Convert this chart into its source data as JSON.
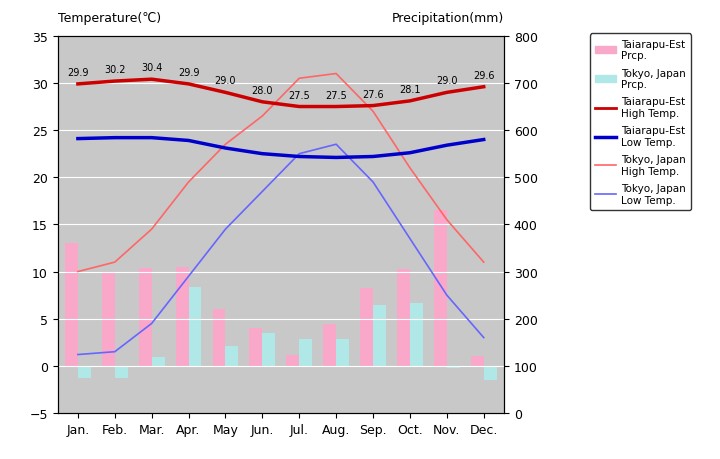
{
  "months": [
    "Jan.",
    "Feb.",
    "Mar.",
    "Apr.",
    "May",
    "Jun.",
    "Jul.",
    "Aug.",
    "Sep.",
    "Oct.",
    "Nov.",
    "Dec."
  ],
  "taiarapu_prcp": [
    13.0,
    9.8,
    10.4,
    10.5,
    6.0,
    4.0,
    1.2,
    4.4,
    8.3,
    10.3,
    16.5,
    1.0
  ],
  "tokyo_prcp": [
    -1.3,
    -1.3,
    0.9,
    8.4,
    2.1,
    3.5,
    2.8,
    2.8,
    6.4,
    6.7,
    -0.2,
    -1.5
  ],
  "taiarapu_high": [
    29.9,
    30.2,
    30.4,
    29.9,
    29.0,
    28.0,
    27.5,
    27.5,
    27.6,
    28.1,
    29.0,
    29.6
  ],
  "taiarapu_low": [
    24.1,
    24.2,
    24.2,
    23.9,
    23.1,
    22.5,
    22.2,
    22.1,
    22.2,
    22.6,
    23.4,
    24.0
  ],
  "tokyo_high": [
    10.0,
    11.0,
    14.5,
    19.5,
    23.5,
    26.5,
    30.5,
    31.0,
    27.0,
    21.0,
    15.5,
    11.0
  ],
  "tokyo_low": [
    1.2,
    1.5,
    4.5,
    9.5,
    14.5,
    18.5,
    22.5,
    23.5,
    19.5,
    13.5,
    7.5,
    3.0
  ],
  "taiarapu_bar_color": "#F9A8C9",
  "tokyo_bar_color": "#B0E8E8",
  "taiarapu_high_color": "#CC0000",
  "taiarapu_low_color": "#0000CC",
  "tokyo_high_color": "#FF6666",
  "tokyo_low_color": "#6666FF",
  "bg_color": "#C8C8C8",
  "title_left": "Temperature(℃)",
  "title_right": "Precipitation(mm)",
  "ylim_temp": [
    -5,
    35
  ],
  "ylim_prcp": [
    0,
    800
  ],
  "bar_width": 0.35
}
